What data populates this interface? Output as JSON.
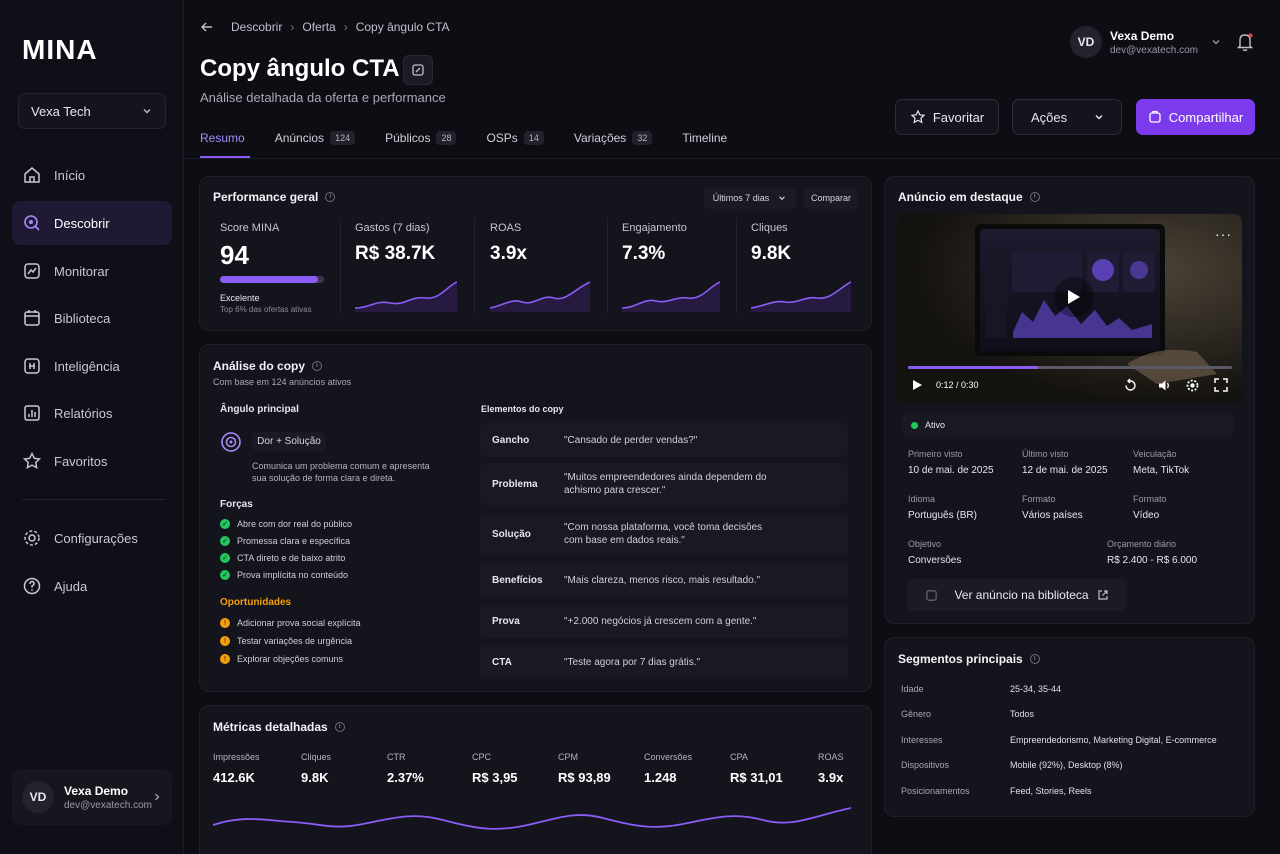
{
  "sidebar": {
    "logo": "MINA",
    "workspace": "Vexa Tech",
    "items": [
      {
        "label": "Início",
        "icon": "home-icon"
      },
      {
        "label": "Descobrir",
        "icon": "search-icon"
      },
      {
        "label": "Monitorar",
        "icon": "monitor-icon"
      },
      {
        "label": "Biblioteca",
        "icon": "library-icon"
      },
      {
        "label": "Inteligência",
        "icon": "intelligence-icon"
      },
      {
        "label": "Relatórios",
        "icon": "reports-icon"
      },
      {
        "label": "Favoritos",
        "icon": "star-icon"
      },
      {
        "label": "Configurações",
        "icon": "gear-icon"
      },
      {
        "label": "Ajuda",
        "icon": "help-icon"
      }
    ],
    "user": {
      "initials": "VD",
      "name": "Vexa Demo",
      "email": "dev@vexatech.com"
    }
  },
  "header": {
    "breadcrumb": [
      "Descobrir",
      "Oferta",
      "Copy ângulo CTA"
    ],
    "title": "Copy ângulo CTA",
    "subtitle": "Análise detalhada da oferta e performance",
    "user": {
      "initials": "VD",
      "name": "Vexa Demo",
      "email": "dev@vexatech.com"
    },
    "buttons": {
      "favorite": "Favoritar",
      "actions": "Ações",
      "share": "Compartilhar"
    },
    "tabs": [
      {
        "label": "Resumo",
        "count": ""
      },
      {
        "label": "Anúncios",
        "count": "124"
      },
      {
        "label": "Públicos",
        "count": "28"
      },
      {
        "label": "OSPs",
        "count": "14"
      },
      {
        "label": "Variações",
        "count": "32"
      },
      {
        "label": "Timeline",
        "count": ""
      }
    ],
    "accent": "#8b5cf6"
  },
  "performance": {
    "title": "Performance geral",
    "period": "Últimos 7 dias",
    "compare": "Comparar",
    "score": {
      "label": "Score MINA",
      "value": "94",
      "progress": 0.94,
      "rating": "Excelente",
      "note": "Top 6% das ofertas ativas"
    },
    "metrics": [
      {
        "label": "Gastos (7 dias)",
        "value": "R$ 38.7K"
      },
      {
        "label": "ROAS",
        "value": "3.9x"
      },
      {
        "label": "Engajamento",
        "value": "7.3%"
      },
      {
        "label": "Cliques",
        "value": "9.8K"
      }
    ]
  },
  "copy": {
    "title": "Análise do copy",
    "subtitle": "Com base em 124 anúncios ativos",
    "angle_title": "Ângulo principal",
    "angle_tag": "Dor + Solução",
    "angle_desc_1": "Comunica um problema comum e apresenta",
    "angle_desc_2": "sua solução de forma clara e direta.",
    "strengths_title": "Forças",
    "strengths": [
      "Abre com dor real do público",
      "Promessa clara e específica",
      "CTA direto e de baixo atrito",
      "Prova implícita no conteúdo"
    ],
    "opps_title": "Oportunidades",
    "opps": [
      "Adicionar prova social explícita",
      "Testar variações de urgência",
      "Explorar objeções comuns"
    ],
    "elements_title": "Elementos do copy",
    "elements": [
      {
        "k": "Gancho",
        "v1": "\"Cansado de perder vendas?\"",
        "v2": ""
      },
      {
        "k": "Problema",
        "v1": "\"Muitos empreendedores ainda dependem do",
        "v2": "achismo para crescer.\""
      },
      {
        "k": "Solução",
        "v1": "\"Com nossa plataforma, você toma decisões",
        "v2": "com base em dados reais.\""
      },
      {
        "k": "Benefícios",
        "v1": "\"Mais clareza, menos risco, mais resultado.\"",
        "v2": ""
      },
      {
        "k": "Prova",
        "v1": "\"+2.000 negócios já crescem com a gente.\"",
        "v2": ""
      },
      {
        "k": "CTA",
        "v1": "\"Teste agora por 7 dias grátis.\"",
        "v2": ""
      }
    ]
  },
  "detailed": {
    "title": "Métricas detalhadas",
    "metrics": [
      {
        "label": "Impressões",
        "value": "412.6K"
      },
      {
        "label": "Cliques",
        "value": "9.8K"
      },
      {
        "label": "CTR",
        "value": "2.37%"
      },
      {
        "label": "CPC",
        "value": "R$ 3,95"
      },
      {
        "label": "CPM",
        "value": "R$ 93,89"
      },
      {
        "label": "Conversões",
        "value": "1.248"
      },
      {
        "label": "CPA",
        "value": "R$ 31,01"
      },
      {
        "label": "ROAS",
        "value": "3.9x"
      }
    ]
  },
  "featured": {
    "title": "Anúncio em destaque",
    "time": "0:12 / 0:30",
    "progress": 0.4,
    "status": "Ativo",
    "fields": [
      {
        "k": "Primeiro visto",
        "v": "10 de mai. de 2025"
      },
      {
        "k": "Último visto",
        "v": "12 de mai. de 2025"
      },
      {
        "k": "Veiculação",
        "v": "Meta, TikTok"
      },
      {
        "k": "Idioma",
        "v": "Português (BR)"
      },
      {
        "k": "Formato",
        "v": "Vários países"
      },
      {
        "k": "Formato",
        "v": "Vídeo"
      },
      {
        "k": "Objetivo",
        "v": "Conversões"
      },
      {
        "k": "Orçamento diário",
        "v": "R$ 2.400 - R$ 6.000"
      }
    ],
    "library_button": "Ver anúncio na biblioteca"
  },
  "segments": {
    "title": "Segmentos principais",
    "rows": [
      {
        "k": "Idade",
        "v": "25-34, 35-44"
      },
      {
        "k": "Gênero",
        "v": "Todos"
      },
      {
        "k": "Interesses",
        "v": "Empreendedorismo, Marketing Digital, E-commerce"
      },
      {
        "k": "Dispositivos",
        "v": "Mobile (92%), Desktop (8%)"
      },
      {
        "k": "Posicionamentos",
        "v": "Feed, Stories, Reels"
      }
    ]
  }
}
